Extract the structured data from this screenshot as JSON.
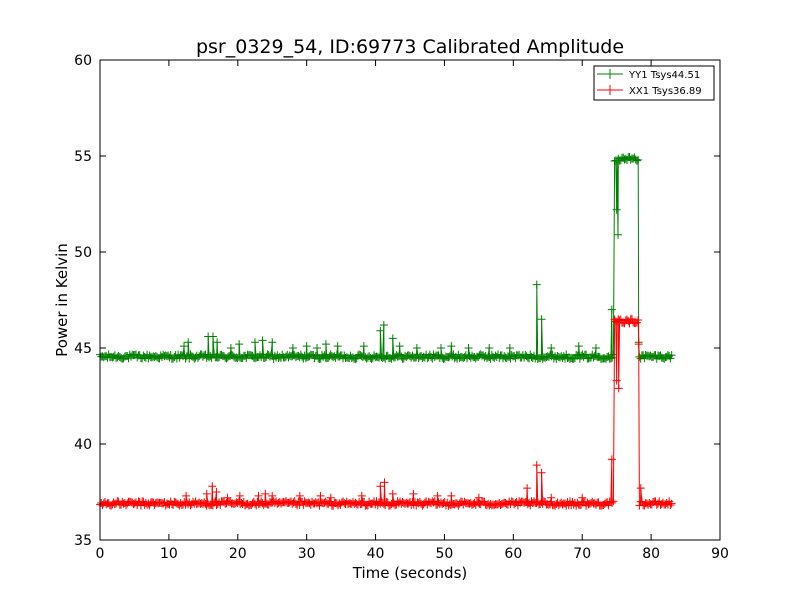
{
  "chart_data": {
    "type": "line",
    "title": "psr_0329_54, ID:69773 Calibrated Amplitude",
    "xlabel": "Time (seconds)",
    "ylabel": "Power in Kelvin",
    "xlim": [
      0,
      90
    ],
    "ylim": [
      35,
      60
    ],
    "xticks": [
      0,
      10,
      20,
      30,
      40,
      50,
      60,
      70,
      80,
      90
    ],
    "xtick_labels": [
      "0",
      "10",
      "20",
      "30",
      "40",
      "50",
      "60",
      "70",
      "80",
      "90"
    ],
    "yticks": [
      35,
      40,
      45,
      50,
      55,
      60
    ],
    "ytick_labels": [
      "35",
      "40",
      "45",
      "50",
      "55",
      "60"
    ],
    "grid": false,
    "legend_position": "top-right",
    "marker": "+",
    "series": [
      {
        "name": "YY1 Tsys44.51",
        "color": "#008000",
        "baseline": 44.55,
        "noise": 0.12,
        "x_start": 0,
        "x_end": 83,
        "plateau": {
          "x_start": 74.7,
          "x_end": 78.2,
          "level": 54.85
        },
        "spikes": [
          [
            12.2,
            45.1
          ],
          [
            12.8,
            45.3
          ],
          [
            15.7,
            45.6
          ],
          [
            16.4,
            45.6
          ],
          [
            17.0,
            45.3
          ],
          [
            19.0,
            45.0
          ],
          [
            20.2,
            45.2
          ],
          [
            22.5,
            45.3
          ],
          [
            23.6,
            45.4
          ],
          [
            25.0,
            45.3
          ],
          [
            28.0,
            45.0
          ],
          [
            30.0,
            45.1
          ],
          [
            31.5,
            45.0
          ],
          [
            32.8,
            45.2
          ],
          [
            34.5,
            45.1
          ],
          [
            38.3,
            45.1
          ],
          [
            40.7,
            45.9
          ],
          [
            41.2,
            46.2
          ],
          [
            42.5,
            45.5
          ],
          [
            43.5,
            45.1
          ],
          [
            46.0,
            45.0
          ],
          [
            49.5,
            45.0
          ],
          [
            51.0,
            45.1
          ],
          [
            53.5,
            45.0
          ],
          [
            56.5,
            45.0
          ],
          [
            59.5,
            45.0
          ],
          [
            63.4,
            48.3
          ],
          [
            64.1,
            46.5
          ],
          [
            65.5,
            45.0
          ],
          [
            69.5,
            45.1
          ],
          [
            72.0,
            45.0
          ],
          [
            74.3,
            47.0
          ],
          [
            75.0,
            52.2
          ],
          [
            75.2,
            50.9
          ],
          [
            78.2,
            45.3
          ]
        ]
      },
      {
        "name": "XX1 Tsys36.89",
        "color": "#ff0000",
        "baseline": 36.9,
        "noise": 0.12,
        "x_start": 0,
        "x_end": 83,
        "plateau": {
          "x_start": 74.7,
          "x_end": 78.2,
          "level": 46.4
        },
        "spikes": [
          [
            12.5,
            37.3
          ],
          [
            15.5,
            37.4
          ],
          [
            16.3,
            37.8
          ],
          [
            16.9,
            37.5
          ],
          [
            18.5,
            37.2
          ],
          [
            20.3,
            37.3
          ],
          [
            23.0,
            37.3
          ],
          [
            24.0,
            37.4
          ],
          [
            25.0,
            37.3
          ],
          [
            29.0,
            37.3
          ],
          [
            32.0,
            37.3
          ],
          [
            33.5,
            37.2
          ],
          [
            38.0,
            37.3
          ],
          [
            40.7,
            37.8
          ],
          [
            41.3,
            38.0
          ],
          [
            42.5,
            37.4
          ],
          [
            45.5,
            37.4
          ],
          [
            49.0,
            37.3
          ],
          [
            51.0,
            37.3
          ],
          [
            55.0,
            37.2
          ],
          [
            62.0,
            37.7
          ],
          [
            63.4,
            38.9
          ],
          [
            64.1,
            38.5
          ],
          [
            65.5,
            37.2
          ],
          [
            70.0,
            37.2
          ],
          [
            74.3,
            39.2
          ],
          [
            75.0,
            43.3
          ],
          [
            75.3,
            42.9
          ],
          [
            78.2,
            45.2
          ],
          [
            78.5,
            37.7
          ]
        ]
      }
    ]
  }
}
